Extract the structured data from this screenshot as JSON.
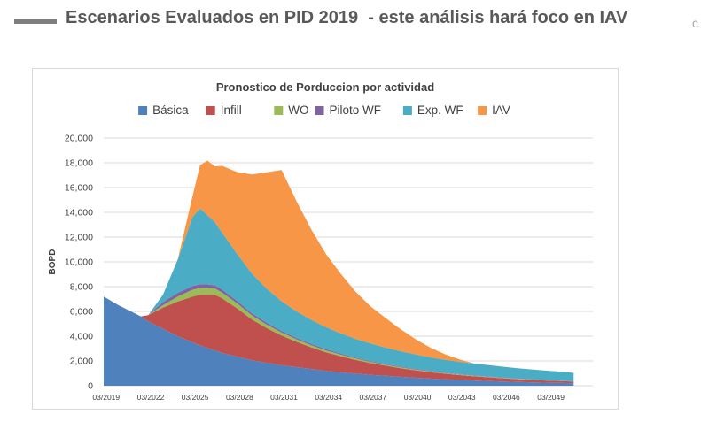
{
  "slide": {
    "title": "Escenarios Evaluados en PID 2019  - este análisis hará foco en IAV",
    "edge_glyph": "c"
  },
  "chart_data": {
    "type": "area",
    "stacked": true,
    "title": "Pronostico  de Porduccion  por actividad",
    "xlabel": "",
    "ylabel": "BOPD",
    "ylim": [
      0,
      20000
    ],
    "yticks": [
      "0",
      "2,000",
      "4,000",
      "6,000",
      "8,000",
      "10,000",
      "12,000",
      "14,000",
      "16,000",
      "18,000",
      "20,000"
    ],
    "xticks": [
      "03/2019",
      "03/2022",
      "03/2025",
      "03/2028",
      "03/2031",
      "03/2034",
      "03/2037",
      "03/2040",
      "03/2043",
      "03/2046",
      "03/2049"
    ],
    "legend_position": "top",
    "grid": true,
    "x": [
      2019.0,
      2020.0,
      2021.0,
      2021.5,
      2022.0,
      2023.0,
      2024.0,
      2025.0,
      2025.5,
      2026.0,
      2026.5,
      2027.0,
      2028.0,
      2029.0,
      2030.0,
      2031.0,
      2032.0,
      2033.0,
      2034.0,
      2035.0,
      2036.0,
      2037.0,
      2038.0,
      2039.0,
      2040.0,
      2041.0,
      2042.0,
      2043.0,
      2044.0,
      2045.0,
      2046.0,
      2047.0,
      2048.0,
      2049.0,
      2050.0,
      2050.7
    ],
    "series": [
      {
        "name": "Básica",
        "color": "#4f81bd",
        "values": [
          7200,
          6500,
          5900,
          5600,
          5200,
          4600,
          4000,
          3500,
          3250,
          3050,
          2850,
          2650,
          2350,
          2050,
          1850,
          1650,
          1500,
          1350,
          1200,
          1080,
          980,
          880,
          800,
          720,
          650,
          580,
          520,
          470,
          420,
          380,
          340,
          300,
          270,
          240,
          220,
          200
        ]
      },
      {
        "name": "Infill",
        "color": "#c0504d",
        "values": [
          0,
          0,
          0,
          0,
          500,
          1700,
          2800,
          3700,
          4100,
          4300,
          4500,
          4400,
          3900,
          3300,
          2800,
          2400,
          2050,
          1750,
          1500,
          1300,
          1100,
          950,
          820,
          700,
          600,
          520,
          450,
          390,
          340,
          300,
          260,
          220,
          190,
          170,
          150,
          130
        ]
      },
      {
        "name": "WO",
        "color": "#9bbb59",
        "values": [
          0,
          0,
          0,
          0,
          0,
          200,
          400,
          550,
          550,
          550,
          500,
          460,
          400,
          330,
          280,
          240,
          200,
          170,
          150,
          130,
          110,
          95,
          80,
          70,
          60,
          50,
          45,
          40,
          35,
          30,
          25,
          22,
          20,
          18,
          16,
          15
        ]
      },
      {
        "name": "Piloto WF",
        "color": "#8064a2",
        "values": [
          0,
          0,
          0,
          0,
          0,
          250,
          300,
          300,
          300,
          280,
          260,
          240,
          200,
          170,
          150,
          130,
          110,
          100,
          90,
          80,
          70,
          60,
          55,
          50,
          45,
          40,
          35,
          30,
          28,
          25,
          22,
          20,
          18,
          16,
          15,
          14
        ]
      },
      {
        "name": "Exp. WF",
        "color": "#4bacc6",
        "values": [
          0,
          0,
          0,
          0,
          0,
          600,
          2700,
          5600,
          6100,
          5600,
          5100,
          4600,
          3800,
          3200,
          2750,
          2400,
          2150,
          1950,
          1780,
          1640,
          1520,
          1420,
          1330,
          1250,
          1180,
          1110,
          1050,
          1000,
          960,
          920,
          880,
          840,
          800,
          760,
          720,
          680
        ]
      },
      {
        "name": "IAV",
        "color": "#f79646",
        "values": [
          0,
          0,
          0,
          0,
          0,
          0,
          0,
          1700,
          3500,
          4400,
          4500,
          5400,
          6600,
          8000,
          9400,
          10600,
          8900,
          7300,
          5900,
          4800,
          3800,
          3000,
          2400,
          1800,
          1250,
          800,
          450,
          200,
          0,
          0,
          0,
          0,
          0,
          0,
          0,
          0
        ]
      }
    ]
  }
}
